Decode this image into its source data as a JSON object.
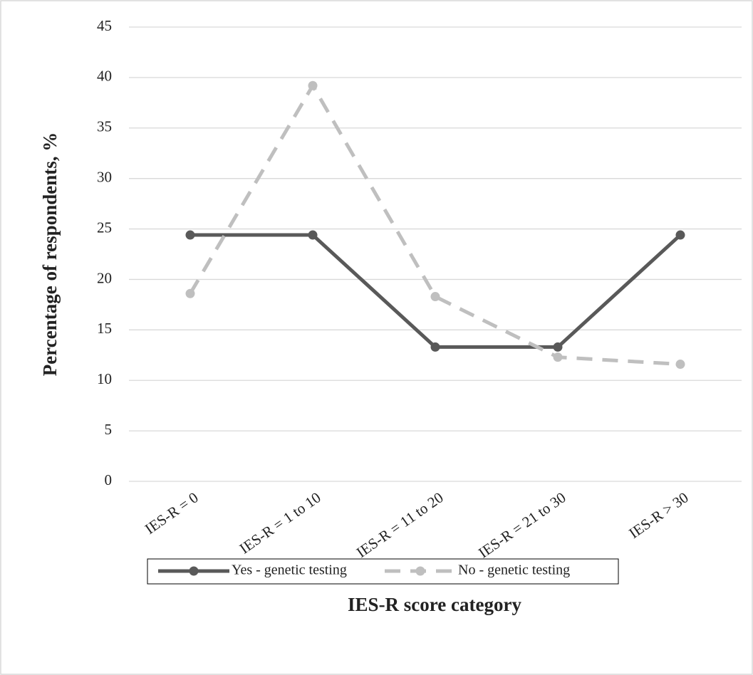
{
  "chart_data": {
    "type": "line",
    "x_label": "IES-R score category",
    "y_label": "Percentage of respondents, %",
    "categories": [
      "IES-R = 0",
      "IES-R = 1 to 10",
      "IES-R = 11 to 20",
      "IES-R = 21 to 30",
      "IES-R > 30"
    ],
    "series": [
      {
        "name": "Yes - genetic testing",
        "color": "#595959",
        "dashed": false,
        "values": [
          24.4,
          24.4,
          13.3,
          13.3,
          24.4
        ]
      },
      {
        "name": "No - genetic testing",
        "color": "#bfbfbf",
        "dashed": true,
        "values": [
          18.6,
          39.2,
          18.3,
          12.3,
          11.6
        ]
      }
    ],
    "ylim": [
      0,
      45
    ],
    "yticks": [
      0,
      5,
      10,
      15,
      20,
      25,
      30,
      35,
      40,
      45
    ],
    "grid": true
  }
}
